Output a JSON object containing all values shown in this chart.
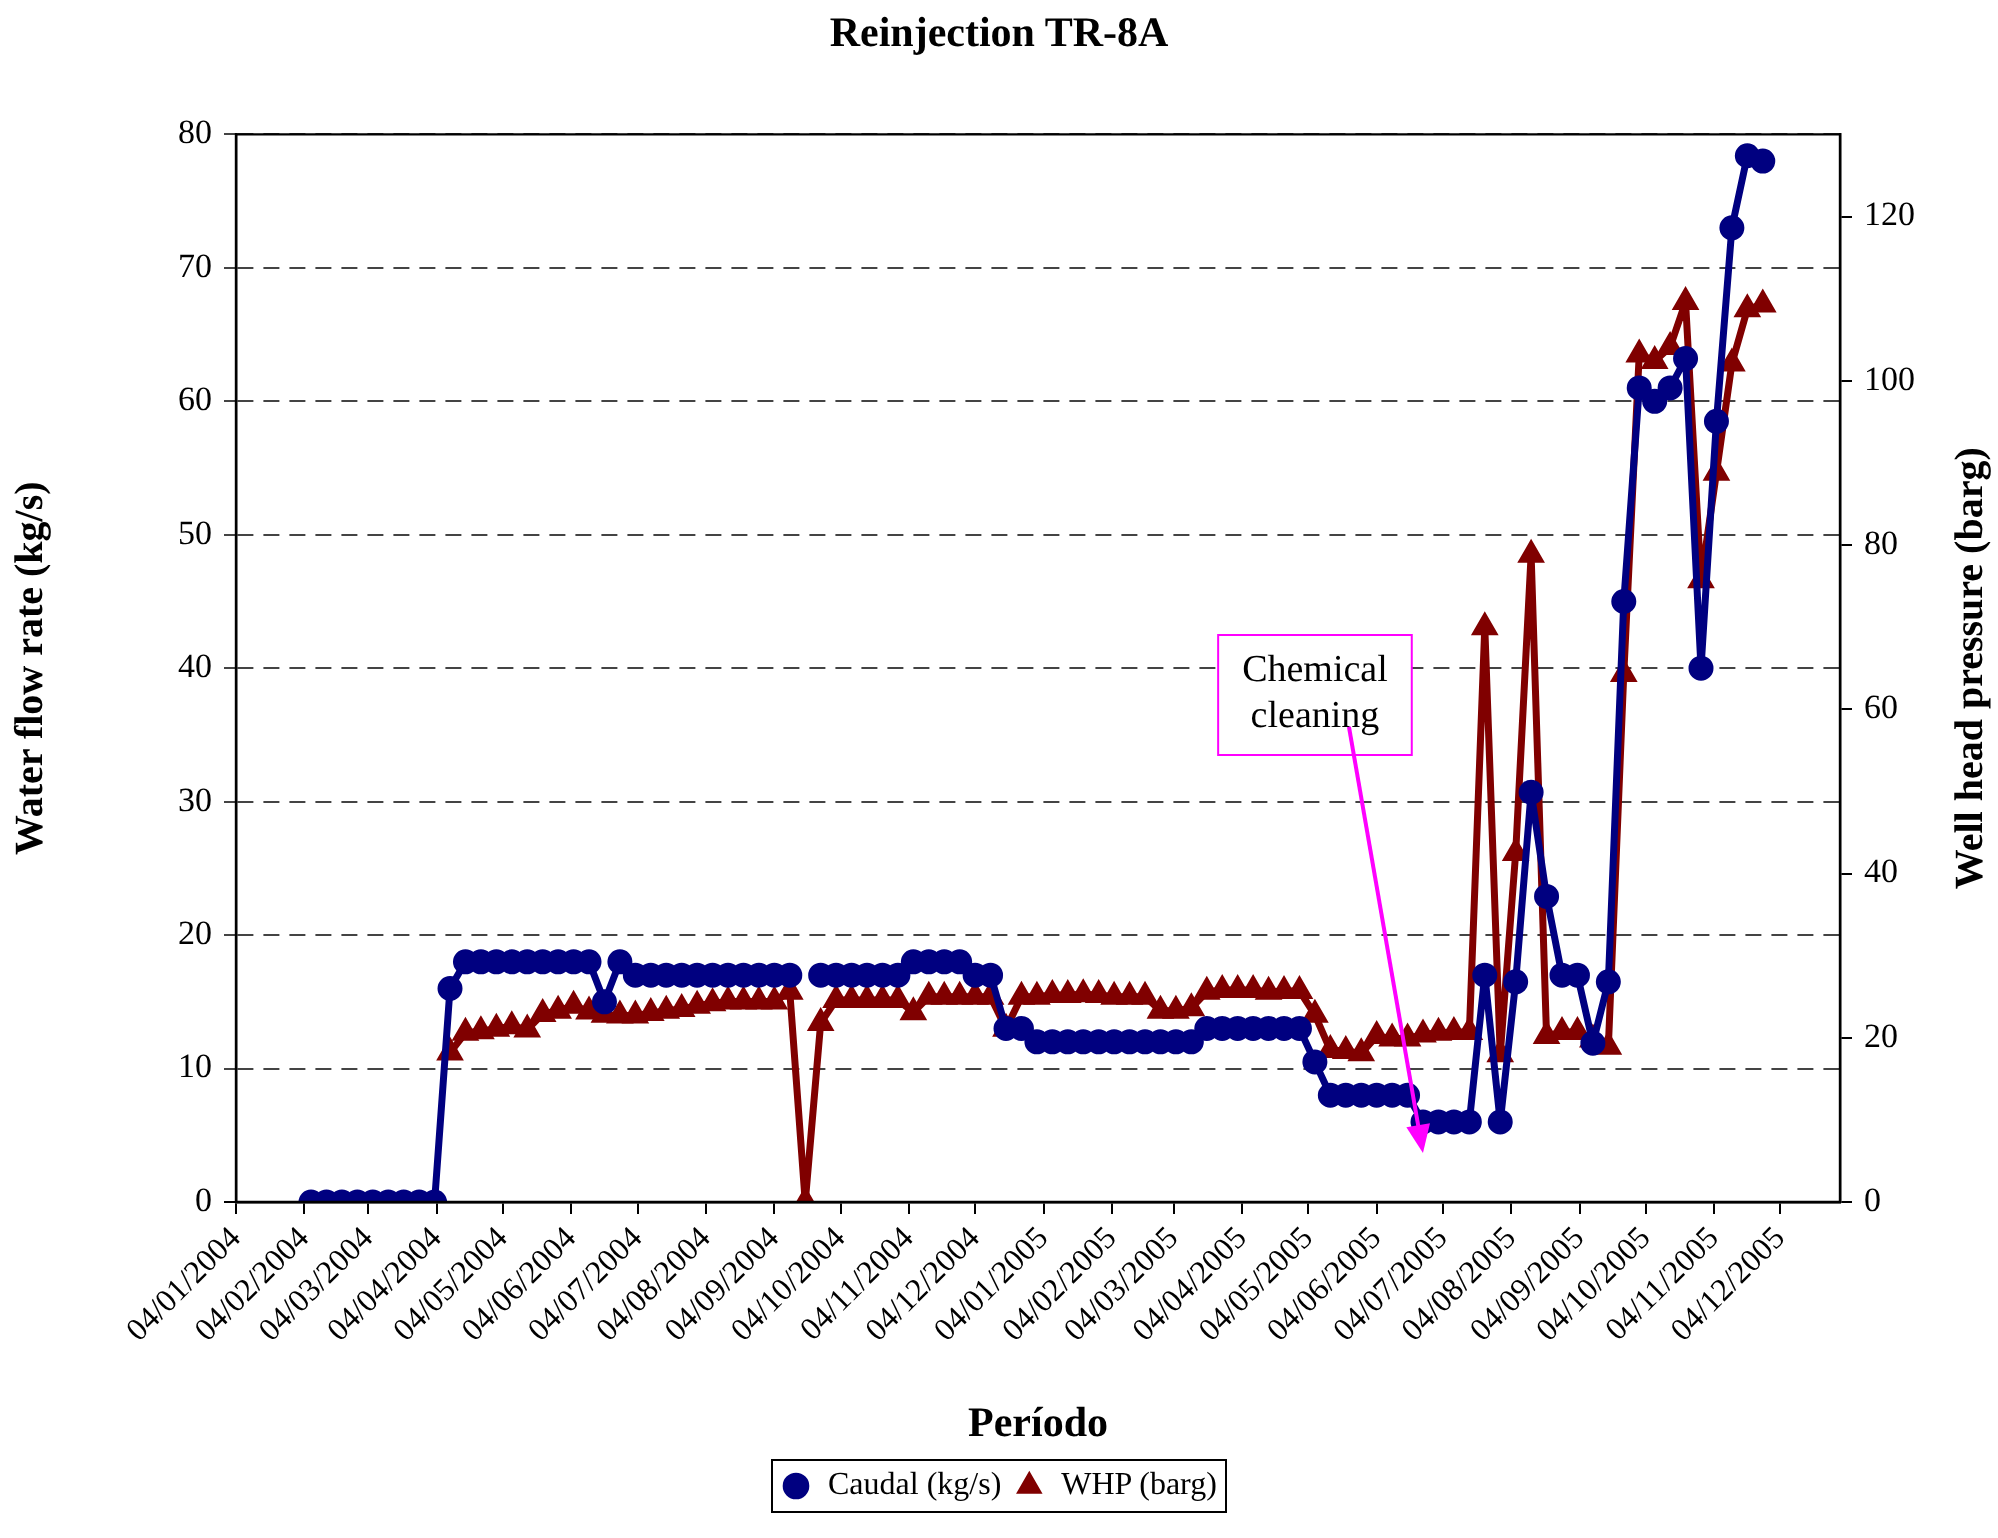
{
  "chart_data": {
    "type": "line",
    "title": "Reinjection TR-8A",
    "xlabel": "Período",
    "ylabel": "Water flow rate (kg/s)",
    "y2label": "Well head pressure (barg)",
    "x": [
      "2004-02-07",
      "2004-02-14",
      "2004-02-21",
      "2004-02-28",
      "2004-03-06",
      "2004-03-13",
      "2004-03-20",
      "2004-03-27",
      "2004-04-03",
      "2004-04-10",
      "2004-04-17",
      "2004-04-24",
      "2004-05-01",
      "2004-05-08",
      "2004-05-15",
      "2004-05-22",
      "2004-05-29",
      "2004-06-05",
      "2004-06-12",
      "2004-06-19",
      "2004-06-26",
      "2004-07-03",
      "2004-07-10",
      "2004-07-17",
      "2004-07-24",
      "2004-07-31",
      "2004-08-07",
      "2004-08-14",
      "2004-08-21",
      "2004-08-28",
      "2004-09-04",
      "2004-09-11",
      "2004-09-18",
      "2004-09-25",
      "2004-10-02",
      "2004-10-09",
      "2004-10-16",
      "2004-10-23",
      "2004-10-30",
      "2004-11-06",
      "2004-11-13",
      "2004-11-20",
      "2004-11-27",
      "2004-12-04",
      "2004-12-11",
      "2004-12-18",
      "2004-12-25",
      "2005-01-01",
      "2005-01-08",
      "2005-01-15",
      "2005-01-22",
      "2005-01-29",
      "2005-02-05",
      "2005-02-12",
      "2005-02-19",
      "2005-02-26",
      "2005-03-05",
      "2005-03-12",
      "2005-03-19",
      "2005-03-26",
      "2005-04-02",
      "2005-04-09",
      "2005-04-16",
      "2005-04-23",
      "2005-04-30",
      "2005-05-07",
      "2005-05-14",
      "2005-05-21",
      "2005-05-28",
      "2005-06-04",
      "2005-06-11",
      "2005-06-18",
      "2005-06-25",
      "2005-07-02",
      "2005-07-09",
      "2005-07-16",
      "2005-07-23",
      "2005-07-30",
      "2005-08-06",
      "2005-08-13",
      "2005-08-20",
      "2005-08-27",
      "2005-09-03",
      "2005-09-10",
      "2005-09-17",
      "2005-09-24",
      "2005-10-01",
      "2005-10-08",
      "2005-10-15",
      "2005-10-22",
      "2005-10-29",
      "2005-11-05",
      "2005-11-12",
      "2005-11-19",
      "2005-11-26"
    ],
    "series": [
      {
        "name": "Caudal (kg/s)",
        "color": "#000080",
        "marker": "circle",
        "values": [
          0,
          0,
          0,
          0,
          0,
          0,
          0,
          0,
          0,
          16,
          18,
          18,
          18,
          18,
          18,
          18,
          18,
          18,
          18,
          15,
          18,
          17,
          17,
          17,
          17,
          17,
          17,
          17,
          17,
          17,
          17,
          17,
          null,
          17,
          17,
          17,
          17,
          17,
          17,
          18,
          18,
          18,
          18,
          17,
          17,
          13,
          13,
          12,
          12,
          12,
          12,
          12,
          12,
          12,
          12,
          12,
          12,
          12,
          13,
          13,
          13,
          13,
          13,
          13,
          13,
          10.5,
          8,
          8,
          8,
          8,
          8,
          8,
          6,
          6,
          6,
          6,
          17,
          6,
          16.5,
          30.7,
          22.9,
          17,
          17,
          11.9,
          16.5,
          45,
          61,
          60,
          61,
          63.2,
          40,
          58.5,
          73,
          78.4,
          78
        ]
      },
      {
        "name": "WHP (barg)",
        "color": "#800000",
        "marker": "triangle",
        "axis": "y2",
        "values": [
          null,
          null,
          null,
          null,
          null,
          null,
          null,
          null,
          null,
          18.2,
          20.6,
          20.8,
          21.1,
          21.4,
          21.0,
          22.9,
          23.3,
          23.9,
          23.2,
          22.8,
          22.7,
          22.7,
          23.0,
          23.3,
          23.5,
          23.9,
          24.2,
          24.4,
          24.4,
          24.4,
          24.4,
          25.6,
          0,
          21.8,
          24.6,
          24.6,
          24.6,
          24.6,
          24.6,
          23.1,
          25,
          25,
          25,
          25,
          25,
          21.1,
          25,
          25,
          25.2,
          25.2,
          25.3,
          25.2,
          25,
          25,
          25,
          23.3,
          23.3,
          23.6,
          25.6,
          25.8,
          25.8,
          25.8,
          25.6,
          25.7,
          25.7,
          22.8,
          18.5,
          18.4,
          18.1,
          20.2,
          19.9,
          19.9,
          20.4,
          20.6,
          20.7,
          20.7,
          70,
          18,
          42.5,
          78.8,
          20.2,
          20.7,
          20.7,
          19.8,
          18.9,
          64.3,
          103.2,
          102.4,
          104.1,
          109.6,
          75.7,
          88.8,
          102.1,
          108.7,
          109.3
        ]
      }
    ],
    "xlim": [
      "2004-01-04",
      "2005-12-31"
    ],
    "xticks": [
      {
        "value": "2004-01-04",
        "label": "04/01/2004"
      },
      {
        "value": "2004-02-04",
        "label": "04/02/2004"
      },
      {
        "value": "2004-03-04",
        "label": "04/03/2004"
      },
      {
        "value": "2004-04-04",
        "label": "04/04/2004"
      },
      {
        "value": "2004-05-04",
        "label": "04/05/2004"
      },
      {
        "value": "2004-06-04",
        "label": "04/06/2004"
      },
      {
        "value": "2004-07-04",
        "label": "04/07/2004"
      },
      {
        "value": "2004-08-04",
        "label": "04/08/2004"
      },
      {
        "value": "2004-09-04",
        "label": "04/09/2004"
      },
      {
        "value": "2004-10-04",
        "label": "04/10/2004"
      },
      {
        "value": "2004-11-04",
        "label": "04/11/2004"
      },
      {
        "value": "2004-12-04",
        "label": "04/12/2004"
      },
      {
        "value": "2005-01-04",
        "label": "04/01/2005"
      },
      {
        "value": "2005-02-04",
        "label": "04/02/2005"
      },
      {
        "value": "2005-03-04",
        "label": "04/03/2005"
      },
      {
        "value": "2005-04-04",
        "label": "04/04/2005"
      },
      {
        "value": "2005-05-04",
        "label": "04/05/2005"
      },
      {
        "value": "2005-06-04",
        "label": "04/06/2005"
      },
      {
        "value": "2005-07-04",
        "label": "04/07/2005"
      },
      {
        "value": "2005-08-04",
        "label": "04/08/2005"
      },
      {
        "value": "2005-09-04",
        "label": "04/09/2005"
      },
      {
        "value": "2005-10-04",
        "label": "04/10/2005"
      },
      {
        "value": "2005-11-04",
        "label": "04/11/2005"
      },
      {
        "value": "2005-12-04",
        "label": "04/12/2005"
      }
    ],
    "ylim": [
      0,
      80
    ],
    "yticks": [
      0,
      10,
      20,
      30,
      40,
      50,
      60,
      70,
      80
    ],
    "y2lim": [
      0,
      130
    ],
    "y2ticks": [
      0,
      20,
      40,
      60,
      80,
      100,
      120
    ],
    "grid": "y",
    "legend": "bottom",
    "line_style": "solid",
    "annotations": [
      "Chemical cleaning"
    ]
  }
}
